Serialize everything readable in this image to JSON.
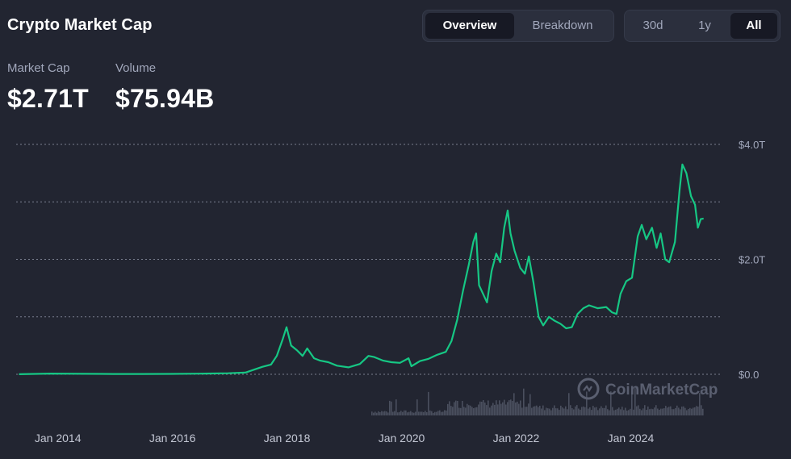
{
  "header": {
    "title": "Crypto Market Cap",
    "view_tabs": [
      "Overview",
      "Breakdown"
    ],
    "active_view": 0,
    "range_tabs": [
      "30d",
      "1y",
      "All"
    ],
    "active_range": 2
  },
  "stats": {
    "market_cap_label": "Market Cap",
    "market_cap_value": "$2.71T",
    "volume_label": "Volume",
    "volume_value": "$75.94B"
  },
  "watermark": "CoinMarketCap",
  "colors": {
    "background": "#222531",
    "line": "#16c784",
    "grid": "#7a7f8f",
    "volume": "#4a4f5e"
  },
  "chart_data": {
    "type": "line",
    "title": "",
    "xlabel": "",
    "ylabel": "",
    "x_tick_labels": [
      "Jan 2014",
      "Jan 2016",
      "Jan 2018",
      "Jan 2020",
      "Jan 2022",
      "Jan 2024"
    ],
    "x_tick_values": [
      2014,
      2016,
      2018,
      2020,
      2022,
      2024
    ],
    "y_tick_labels": [
      "$4.0T",
      "$2.0T",
      "$0.0"
    ],
    "y_tick_values": [
      4.0,
      2.0,
      0.0
    ],
    "ylim": [
      0,
      4.0
    ],
    "xlim": [
      2013.3,
      2025.6
    ],
    "grid": true,
    "y_axis_position": "right",
    "series": [
      {
        "values_unit": "trillion USD",
        "points": [
          [
            2013.35,
            0.002
          ],
          [
            2013.9,
            0.012
          ],
          [
            2014.5,
            0.008
          ],
          [
            2015.0,
            0.005
          ],
          [
            2015.5,
            0.006
          ],
          [
            2016.0,
            0.007
          ],
          [
            2016.5,
            0.011
          ],
          [
            2017.0,
            0.018
          ],
          [
            2017.3,
            0.03
          ],
          [
            2017.45,
            0.08
          ],
          [
            2017.6,
            0.13
          ],
          [
            2017.75,
            0.17
          ],
          [
            2017.85,
            0.32
          ],
          [
            2017.95,
            0.6
          ],
          [
            2018.02,
            0.82
          ],
          [
            2018.1,
            0.5
          ],
          [
            2018.2,
            0.42
          ],
          [
            2018.3,
            0.32
          ],
          [
            2018.38,
            0.45
          ],
          [
            2018.5,
            0.28
          ],
          [
            2018.6,
            0.24
          ],
          [
            2018.75,
            0.21
          ],
          [
            2018.9,
            0.15
          ],
          [
            2019.1,
            0.12
          ],
          [
            2019.3,
            0.18
          ],
          [
            2019.45,
            0.32
          ],
          [
            2019.55,
            0.3
          ],
          [
            2019.7,
            0.24
          ],
          [
            2019.85,
            0.21
          ],
          [
            2020.0,
            0.2
          ],
          [
            2020.15,
            0.28
          ],
          [
            2020.2,
            0.14
          ],
          [
            2020.35,
            0.23
          ],
          [
            2020.5,
            0.27
          ],
          [
            2020.65,
            0.34
          ],
          [
            2020.8,
            0.39
          ],
          [
            2020.9,
            0.58
          ],
          [
            2021.0,
            0.95
          ],
          [
            2021.1,
            1.45
          ],
          [
            2021.2,
            1.9
          ],
          [
            2021.28,
            2.3
          ],
          [
            2021.33,
            2.45
          ],
          [
            2021.38,
            1.55
          ],
          [
            2021.45,
            1.4
          ],
          [
            2021.52,
            1.25
          ],
          [
            2021.6,
            1.8
          ],
          [
            2021.68,
            2.1
          ],
          [
            2021.75,
            1.95
          ],
          [
            2021.82,
            2.55
          ],
          [
            2021.88,
            2.85
          ],
          [
            2021.93,
            2.45
          ],
          [
            2022.0,
            2.15
          ],
          [
            2022.1,
            1.85
          ],
          [
            2022.18,
            1.75
          ],
          [
            2022.25,
            2.05
          ],
          [
            2022.33,
            1.6
          ],
          [
            2022.42,
            1.0
          ],
          [
            2022.5,
            0.85
          ],
          [
            2022.6,
            1.0
          ],
          [
            2022.7,
            0.93
          ],
          [
            2022.8,
            0.88
          ],
          [
            2022.9,
            0.8
          ],
          [
            2023.0,
            0.82
          ],
          [
            2023.1,
            1.05
          ],
          [
            2023.2,
            1.15
          ],
          [
            2023.3,
            1.2
          ],
          [
            2023.45,
            1.15
          ],
          [
            2023.6,
            1.17
          ],
          [
            2023.7,
            1.08
          ],
          [
            2023.78,
            1.05
          ],
          [
            2023.85,
            1.4
          ],
          [
            2023.95,
            1.62
          ],
          [
            2024.05,
            1.68
          ],
          [
            2024.15,
            2.4
          ],
          [
            2024.22,
            2.6
          ],
          [
            2024.3,
            2.35
          ],
          [
            2024.4,
            2.55
          ],
          [
            2024.48,
            2.2
          ],
          [
            2024.55,
            2.45
          ],
          [
            2024.63,
            2.0
          ],
          [
            2024.7,
            1.95
          ],
          [
            2024.8,
            2.3
          ],
          [
            2024.88,
            3.2
          ],
          [
            2024.93,
            3.65
          ],
          [
            2025.0,
            3.5
          ],
          [
            2025.08,
            3.1
          ],
          [
            2025.15,
            2.95
          ],
          [
            2025.2,
            2.55
          ],
          [
            2025.25,
            2.7
          ],
          [
            2025.3,
            2.71
          ]
        ]
      }
    ],
    "volume_bars": "relative volume shown as grey bars along the bottom, rising from 2019 onward"
  }
}
